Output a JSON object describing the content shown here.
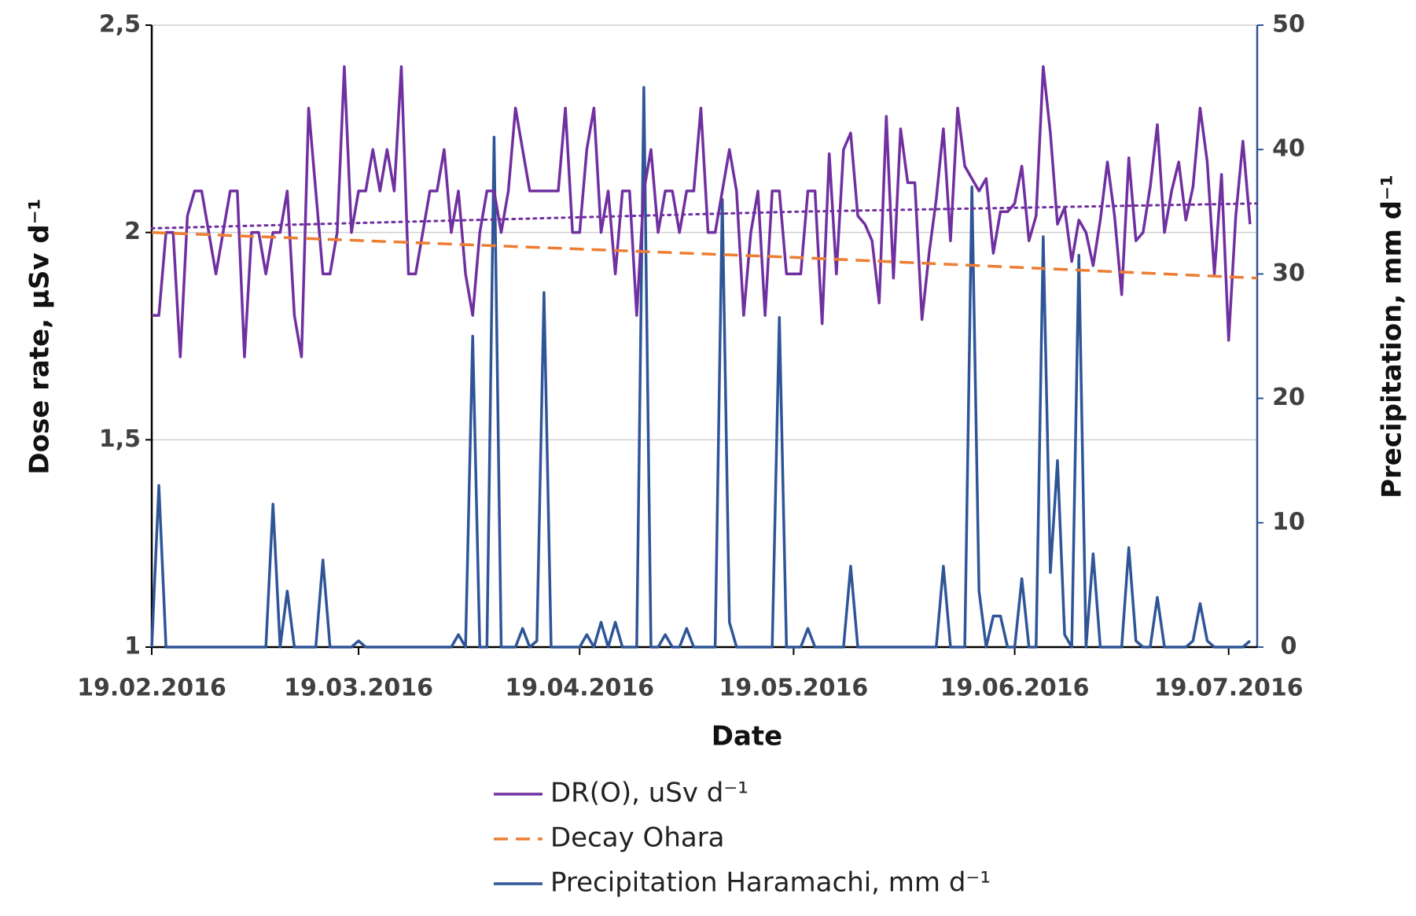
{
  "chart_data": {
    "type": "line",
    "xlabel": "Date",
    "ylabel": "Dose rate, µSv d⁻¹",
    "y2label": "Precipitation, mm d⁻¹",
    "x": [
      "19.02.2016",
      "20.02.2016",
      "21.02.2016",
      "22.02.2016",
      "23.02.2016",
      "24.02.2016",
      "25.02.2016",
      "26.02.2016",
      "27.02.2016",
      "28.02.2016",
      "29.02.2016",
      "01.03.2016",
      "02.03.2016",
      "03.03.2016",
      "04.03.2016",
      "05.03.2016",
      "06.03.2016",
      "07.03.2016",
      "08.03.2016",
      "09.03.2016",
      "10.03.2016",
      "11.03.2016",
      "12.03.2016",
      "13.03.2016",
      "14.03.2016",
      "15.03.2016",
      "16.03.2016",
      "17.03.2016",
      "18.03.2016",
      "19.03.2016",
      "20.03.2016",
      "21.03.2016",
      "22.03.2016",
      "23.03.2016",
      "24.03.2016",
      "25.03.2016",
      "26.03.2016",
      "27.03.2016",
      "28.03.2016",
      "29.03.2016",
      "30.03.2016",
      "31.03.2016",
      "01.04.2016",
      "02.04.2016",
      "03.04.2016",
      "04.04.2016",
      "05.04.2016",
      "06.04.2016",
      "07.04.2016",
      "08.04.2016",
      "09.04.2016",
      "10.04.2016",
      "11.04.2016",
      "12.04.2016",
      "13.04.2016",
      "14.04.2016",
      "15.04.2016",
      "16.04.2016",
      "17.04.2016",
      "18.04.2016",
      "19.04.2016",
      "20.04.2016",
      "21.04.2016",
      "22.04.2016",
      "23.04.2016",
      "24.04.2016",
      "25.04.2016",
      "26.04.2016",
      "27.04.2016",
      "28.04.2016",
      "29.04.2016",
      "30.04.2016",
      "01.05.2016",
      "02.05.2016",
      "03.05.2016",
      "04.05.2016",
      "05.05.2016",
      "06.05.2016",
      "07.05.2016",
      "08.05.2016",
      "09.05.2016",
      "10.05.2016",
      "11.05.2016",
      "12.05.2016",
      "13.05.2016",
      "14.05.2016",
      "15.05.2016",
      "16.05.2016",
      "17.05.2016",
      "18.05.2016",
      "19.05.2016",
      "20.05.2016",
      "21.05.2016",
      "22.05.2016",
      "23.05.2016",
      "24.05.2016",
      "25.05.2016",
      "26.05.2016",
      "27.05.2016",
      "28.05.2016",
      "29.05.2016",
      "30.05.2016",
      "31.05.2016",
      "01.06.2016",
      "02.06.2016",
      "03.06.2016",
      "04.06.2016",
      "05.06.2016",
      "06.06.2016",
      "07.06.2016",
      "08.06.2016",
      "09.06.2016",
      "10.06.2016",
      "11.06.2016",
      "12.06.2016",
      "13.06.2016",
      "14.06.2016",
      "15.06.2016",
      "16.06.2016",
      "17.06.2016",
      "18.06.2016",
      "19.06.2016",
      "20.06.2016",
      "21.06.2016",
      "22.06.2016",
      "23.06.2016",
      "24.06.2016",
      "25.06.2016",
      "26.06.2016",
      "27.06.2016",
      "28.06.2016",
      "29.06.2016",
      "30.06.2016",
      "01.07.2016",
      "02.07.2016",
      "03.07.2016",
      "04.07.2016",
      "05.07.2016",
      "06.07.2016",
      "07.07.2016",
      "08.07.2016",
      "09.07.2016",
      "10.07.2016",
      "11.07.2016",
      "12.07.2016",
      "13.07.2016",
      "14.07.2016",
      "15.07.2016",
      "16.07.2016",
      "17.07.2016",
      "18.07.2016",
      "19.07.2016",
      "20.07.2016",
      "21.07.2016",
      "22.07.2016"
    ],
    "xlim": [
      "19.02.2016",
      "23.07.2016"
    ],
    "xticks": [
      "19.02.2016",
      "19.03.2016",
      "19.04.2016",
      "19.05.2016",
      "19.06.2016",
      "19.07.2016"
    ],
    "ylim": [
      1,
      2.5
    ],
    "yticks": [
      1,
      {
        "value": 1.5,
        "label": "1,5"
      },
      2,
      {
        "value": 2.5,
        "label": "2,5"
      }
    ],
    "y2lim": [
      0,
      50
    ],
    "y2ticks": [
      0,
      10,
      20,
      30,
      40,
      50
    ],
    "grid": true,
    "legend": "bottom",
    "series": [
      {
        "name": "DR(O), uSv d⁻¹",
        "color": "#7030a0",
        "style": "solid",
        "values": [
          1.8,
          1.8,
          2.0,
          2.0,
          1.7,
          2.04,
          2.1,
          2.1,
          2.0,
          1.9,
          2.0,
          2.1,
          2.1,
          1.7,
          2.0,
          2.0,
          1.9,
          2.0,
          2.0,
          2.1,
          1.8,
          1.7,
          2.3,
          2.1,
          1.9,
          1.9,
          2.0,
          2.4,
          2.0,
          2.1,
          2.1,
          2.2,
          2.1,
          2.2,
          2.1,
          2.4,
          1.9,
          1.9,
          2.0,
          2.1,
          2.1,
          2.2,
          2.0,
          2.1,
          1.9,
          1.8,
          2.0,
          2.1,
          2.1,
          2.0,
          2.1,
          2.3,
          2.2,
          2.1,
          2.1,
          2.1,
          2.1,
          2.1,
          2.3,
          2.0,
          2.0,
          2.2,
          2.3,
          2.0,
          2.1,
          1.9,
          2.1,
          2.1,
          1.8,
          2.1,
          2.2,
          2.0,
          2.1,
          2.1,
          2.0,
          2.1,
          2.1,
          2.3,
          2.0,
          2.0,
          2.1,
          2.2,
          2.1,
          1.8,
          2.0,
          2.1,
          1.8,
          2.1,
          2.1,
          1.9,
          1.9,
          1.9,
          2.1,
          2.1,
          1.78,
          2.19,
          1.9,
          2.2,
          2.24,
          2.04,
          2.02,
          1.98,
          1.83,
          2.28,
          1.89,
          2.25,
          2.12,
          2.12,
          1.79,
          1.95,
          2.08,
          2.25,
          1.98,
          2.3,
          2.16,
          2.13,
          2.1,
          2.13,
          1.95,
          2.05,
          2.05,
          2.07,
          2.16,
          1.98,
          2.04,
          2.4,
          2.24,
          2.02,
          2.06,
          1.93,
          2.03,
          2.0,
          1.92,
          2.03,
          2.17,
          2.04,
          1.85,
          2.18,
          1.98,
          2.0,
          2.11,
          2.26,
          2.0,
          2.1,
          2.17,
          2.03,
          2.11,
          2.3,
          2.17,
          1.9,
          2.14,
          1.74,
          2.04,
          2.22,
          2.02
        ]
      },
      {
        "name": "Decay Ohara",
        "color": "#ed7d31",
        "style": "dashed",
        "x": [
          "19.02.2016",
          "19.05.2016",
          "23.07.2016"
        ],
        "values": [
          2.0,
          1.94,
          1.89
        ]
      },
      {
        "name": "Precipitation Haramachi, mm d⁻¹",
        "color": "#2f5597",
        "style": "solid",
        "axis": "y2",
        "values": [
          0,
          13,
          0,
          0,
          0,
          0,
          0,
          0,
          0,
          0,
          0,
          0,
          0,
          0,
          0,
          0,
          0,
          11.5,
          0,
          4.5,
          0,
          0,
          0,
          0,
          7,
          0,
          0,
          0,
          0,
          0.5,
          0,
          0,
          0,
          0,
          0,
          0,
          0,
          0,
          0,
          0,
          0,
          0,
          0,
          1,
          0,
          25,
          0,
          0,
          41,
          0,
          0,
          0,
          1.5,
          0,
          0.5,
          28.5,
          0,
          0,
          0,
          0,
          0,
          1,
          0,
          2,
          0,
          2,
          0,
          0,
          0,
          45,
          0,
          0,
          1,
          0,
          0,
          1.5,
          0,
          0,
          0,
          0,
          36,
          2,
          0,
          0,
          0,
          0,
          0,
          0,
          26.5,
          0,
          0,
          0,
          1.5,
          0,
          0,
          0,
          0,
          0,
          6.5,
          0,
          0,
          0,
          0,
          0,
          0,
          0,
          0,
          0,
          0,
          0,
          0,
          6.5,
          0,
          0,
          0,
          37,
          4.5,
          0,
          2.5,
          2.5,
          0,
          0,
          5.5,
          0,
          0,
          33,
          6,
          15,
          1,
          0,
          31.5,
          0,
          7.5,
          0,
          0,
          0,
          0,
          8,
          0.5,
          0,
          0,
          4,
          0,
          0,
          0,
          0,
          0.5,
          3.5,
          0.5,
          0,
          0,
          0,
          0,
          0,
          0.5
        ]
      },
      {
        "color": "#7030a0",
        "style": "dotted",
        "x": [
          "19.02.2016",
          "19.05.2016",
          "23.07.2016"
        ],
        "values": [
          2.01,
          2.05,
          2.07
        ]
      }
    ]
  }
}
